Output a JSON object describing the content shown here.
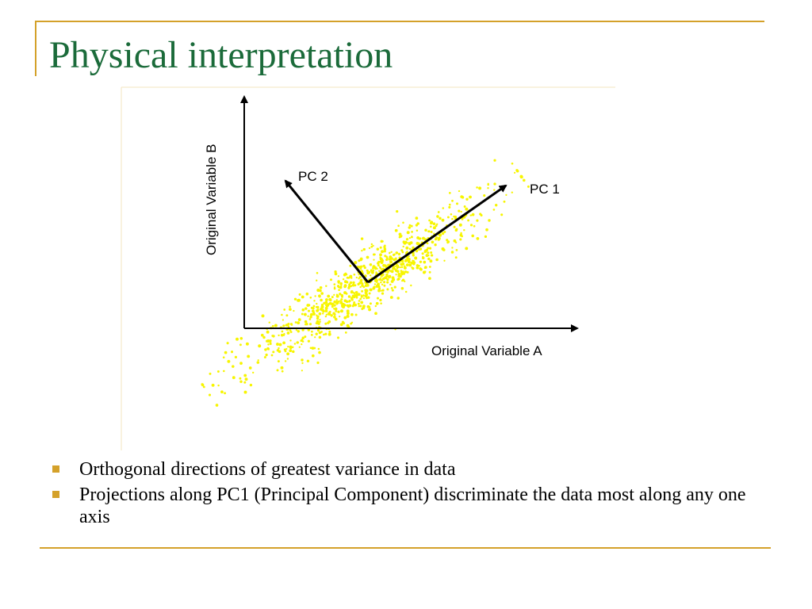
{
  "slide": {
    "title": "Physical interpretation"
  },
  "figure": {
    "x_axis_label": "Original Variable A",
    "y_axis_label": "Original Variable B",
    "pc1_label": "PC 1",
    "pc2_label": "PC 2",
    "point_color": "#f7f500",
    "arrow_color": "#000000"
  },
  "bullets": [
    {
      "text": "Orthogonal directions of greatest variance in data"
    },
    {
      "text": "Projections along PC1 (Principal Component) discriminate the data most along any one axis"
    }
  ],
  "colors": {
    "title": "#1b6b3a",
    "accent": "#d4a12a"
  }
}
